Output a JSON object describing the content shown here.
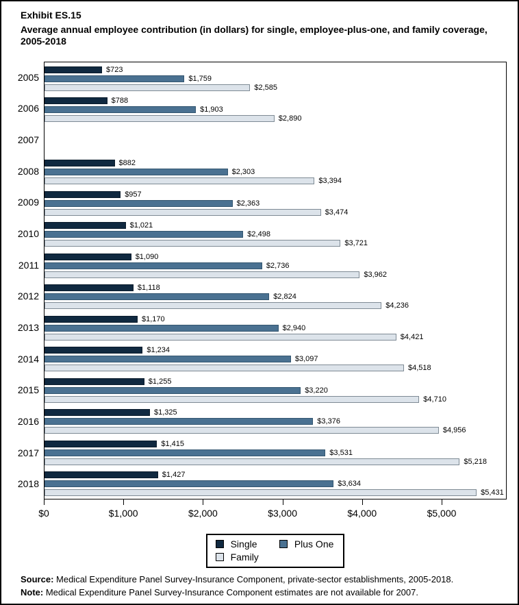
{
  "title": {
    "exhibit": "Exhibit ES.15",
    "main": "Average annual employee contribution (in dollars) for single, employee-plus-one, and family coverage, 2005-2018"
  },
  "chart_data": {
    "type": "bar",
    "orientation": "horizontal",
    "title": "Average annual employee contribution (in dollars) for single, employee-plus-one, and family coverage, 2005-2018",
    "categories": [
      "2005",
      "2006",
      "2007",
      "2008",
      "2009",
      "2010",
      "2011",
      "2012",
      "2013",
      "2014",
      "2015",
      "2016",
      "2017",
      "2018"
    ],
    "series": [
      {
        "name": "Single",
        "color": "#102940",
        "border_color": "#0a1b2b",
        "values": [
          723,
          788,
          null,
          882,
          957,
          1021,
          1090,
          1118,
          1170,
          1234,
          1255,
          1325,
          1415,
          1427
        ]
      },
      {
        "name": "Plus One",
        "color": "#4a7191",
        "border_color": "#33556f",
        "values": [
          1759,
          1903,
          null,
          2303,
          2363,
          2498,
          2736,
          2824,
          2940,
          3097,
          3220,
          3376,
          3531,
          3634
        ]
      },
      {
        "name": "Family",
        "color": "#dce3ea",
        "border_color": "#7e8a94",
        "values": [
          2585,
          2890,
          null,
          3394,
          3474,
          3721,
          3962,
          4236,
          4421,
          4518,
          4710,
          4956,
          5218,
          5431
        ]
      }
    ],
    "xlabel": "",
    "ylabel": "",
    "xlim": [
      0,
      5800
    ],
    "xticks": [
      0,
      1000,
      2000,
      3000,
      4000,
      5000
    ],
    "xtick_labels": [
      "$0",
      "$1,000",
      "$2,000",
      "$3,000",
      "$4,000",
      "$5,000"
    ],
    "grid": false,
    "legend_position": "bottom-center",
    "value_label_prefix": "$",
    "missing_data_years": [
      "2007"
    ]
  },
  "footer": {
    "source_label": "Source:",
    "source_text": " Medical Expenditure Panel Survey-Insurance Component, private-sector establishments, 2005-2018.",
    "note_label": "Note:",
    "note_text": " Medical Expenditure Panel Survey-Insurance Component estimates are not available for 2007."
  }
}
